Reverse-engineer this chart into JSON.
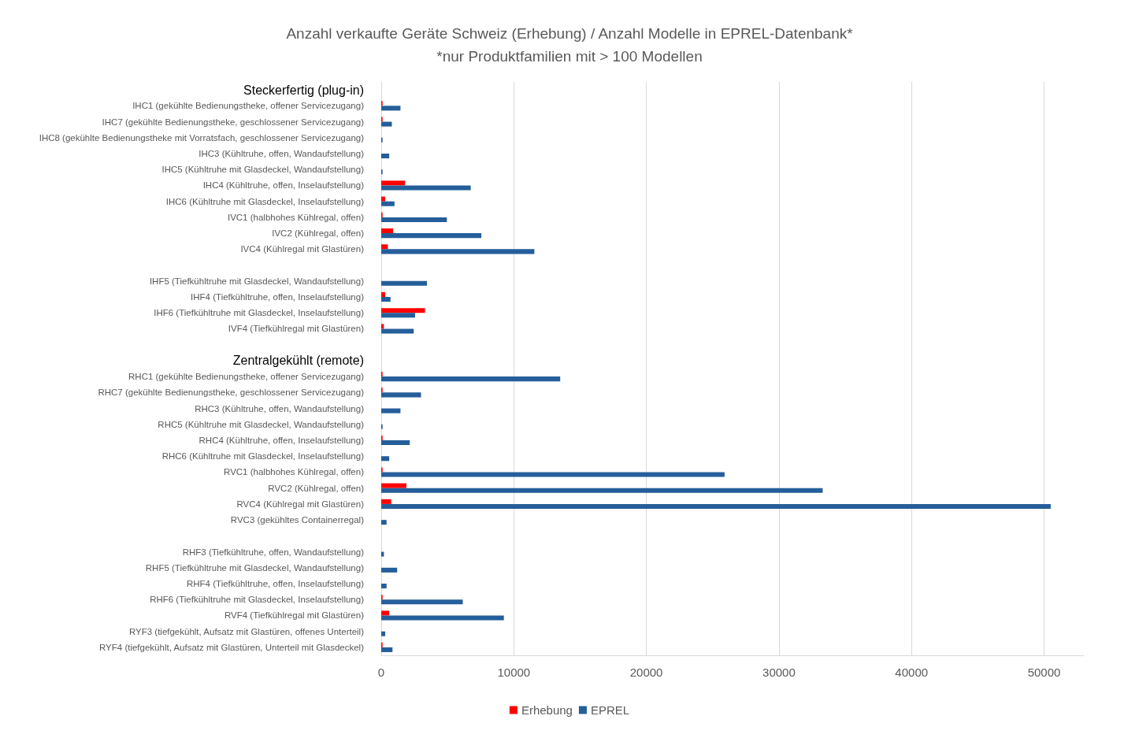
{
  "chart_data": {
    "type": "bar",
    "orientation": "horizontal",
    "title": "Anzahl verkaufte Geräte Schweiz (Erhebung) / Anzahl Modelle in EPREL-Datenbank*",
    "subtitle": "*nur Produktfamilien mit > 100 Modellen",
    "categories": [
      "Steckerfertig (plug-in)",
      "IHC1 (gekühlte Bedienungstheke, offener Servicezugang)",
      "IHC7 (gekühlte Bedienungstheke, geschlossener Servicezugang)",
      "IHC8 (gekühlte Bedienungstheke mit Vorratsfach, geschlossener Servicezugang)",
      "IHC3 (Kühltruhe, offen, Wandaufstellung)",
      "IHC5 (Kühltruhe mit Glasdeckel, Wandaufstellung)",
      "IHC4 (Kühltruhe, offen, Inselaufstellung)",
      "IHC6 (Kühltruhe mit Glasdeckel, Inselaufstellung)",
      "IVC1 (halbhohes Kühlregal, offen)",
      "IVC2 (Kühlregal, offen)",
      "IVC4 (Kühlregal mit Glastüren)",
      null,
      "IHF5 (Tiefkühltruhe mit Glasdeckel, Wandaufstellung)",
      "IHF4 (Tiefkühltruhe, offen, Inselaufstellung)",
      "IHF6 (Tiefkühltruhe mit Glasdeckel, Inselaufstellung)",
      "IVF4 (Tiefkühlregal mit Glastüren)",
      null,
      "Zentralgekühlt (remote)",
      "RHC1 (gekühlte Bedienungstheke, offener Servicezugang)",
      "RHC7 (gekühlte Bedienungstheke, geschlossener Servicezugang)",
      "RHC3 (Kühltruhe, offen, Wandaufstellung)",
      "RHC5 (Kühltruhe mit Glasdeckel, Wandaufstellung)",
      "RHC4 (Kühltruhe, offen, Inselaufstellung)",
      "RHC6 (Kühltruhe mit Glasdeckel, Inselaufstellung)",
      "RVC1 (halbhohes Kühlregal, offen)",
      "RVC2 (Kühlregal, offen)",
      "RVC4 (Kühlregal mit Glastüren)",
      "RVC3 (gekühltes Containerregal)",
      null,
      "RHF3 (Tiefkühltruhe, offen, Wandaufstellung)",
      "RHF5 (Tiefkühltruhe mit Glasdeckel, Wandaufstellung)",
      "RHF4 (Tiefkühltruhe, offen, Inselaufstellung)",
      "RHF6 (Tiefkühltruhe mit Glasdeckel, Inselaufstellung)",
      "RVF4 (Tiefkühlregal mit Glastüren)",
      "RYF3 (tiefgekühlt, Aufsatz mit Glastüren, offenes Unterteil)",
      "RYF4 (tiefgekühlt, Aufsatz mit Glastüren, Unterteil mit Glasdeckel)"
    ],
    "series": [
      {
        "name": "Erhebung",
        "color": "#ff0000",
        "values": [
          null,
          100,
          100,
          null,
          null,
          null,
          1800,
          300,
          100,
          900,
          500,
          null,
          null,
          300,
          3300,
          200,
          null,
          null,
          100,
          100,
          null,
          null,
          100,
          null,
          100,
          1900,
          750,
          null,
          null,
          null,
          null,
          null,
          100,
          600,
          null,
          100
        ]
      },
      {
        "name": "EPREL",
        "color": "#255e9a",
        "values": [
          null,
          1450,
          800,
          100,
          600,
          100,
          6750,
          1000,
          4950,
          7550,
          11550,
          null,
          3450,
          700,
          2550,
          2450,
          null,
          null,
          13500,
          3000,
          1450,
          100,
          2150,
          600,
          25900,
          33300,
          50500,
          400,
          null,
          200,
          1200,
          400,
          6150,
          9250,
          300,
          850
        ]
      }
    ],
    "xlim": [
      0,
      53000
    ],
    "xticks": [
      0,
      10000,
      20000,
      30000,
      40000,
      50000
    ],
    "grid": "x",
    "legend": "bottom"
  }
}
